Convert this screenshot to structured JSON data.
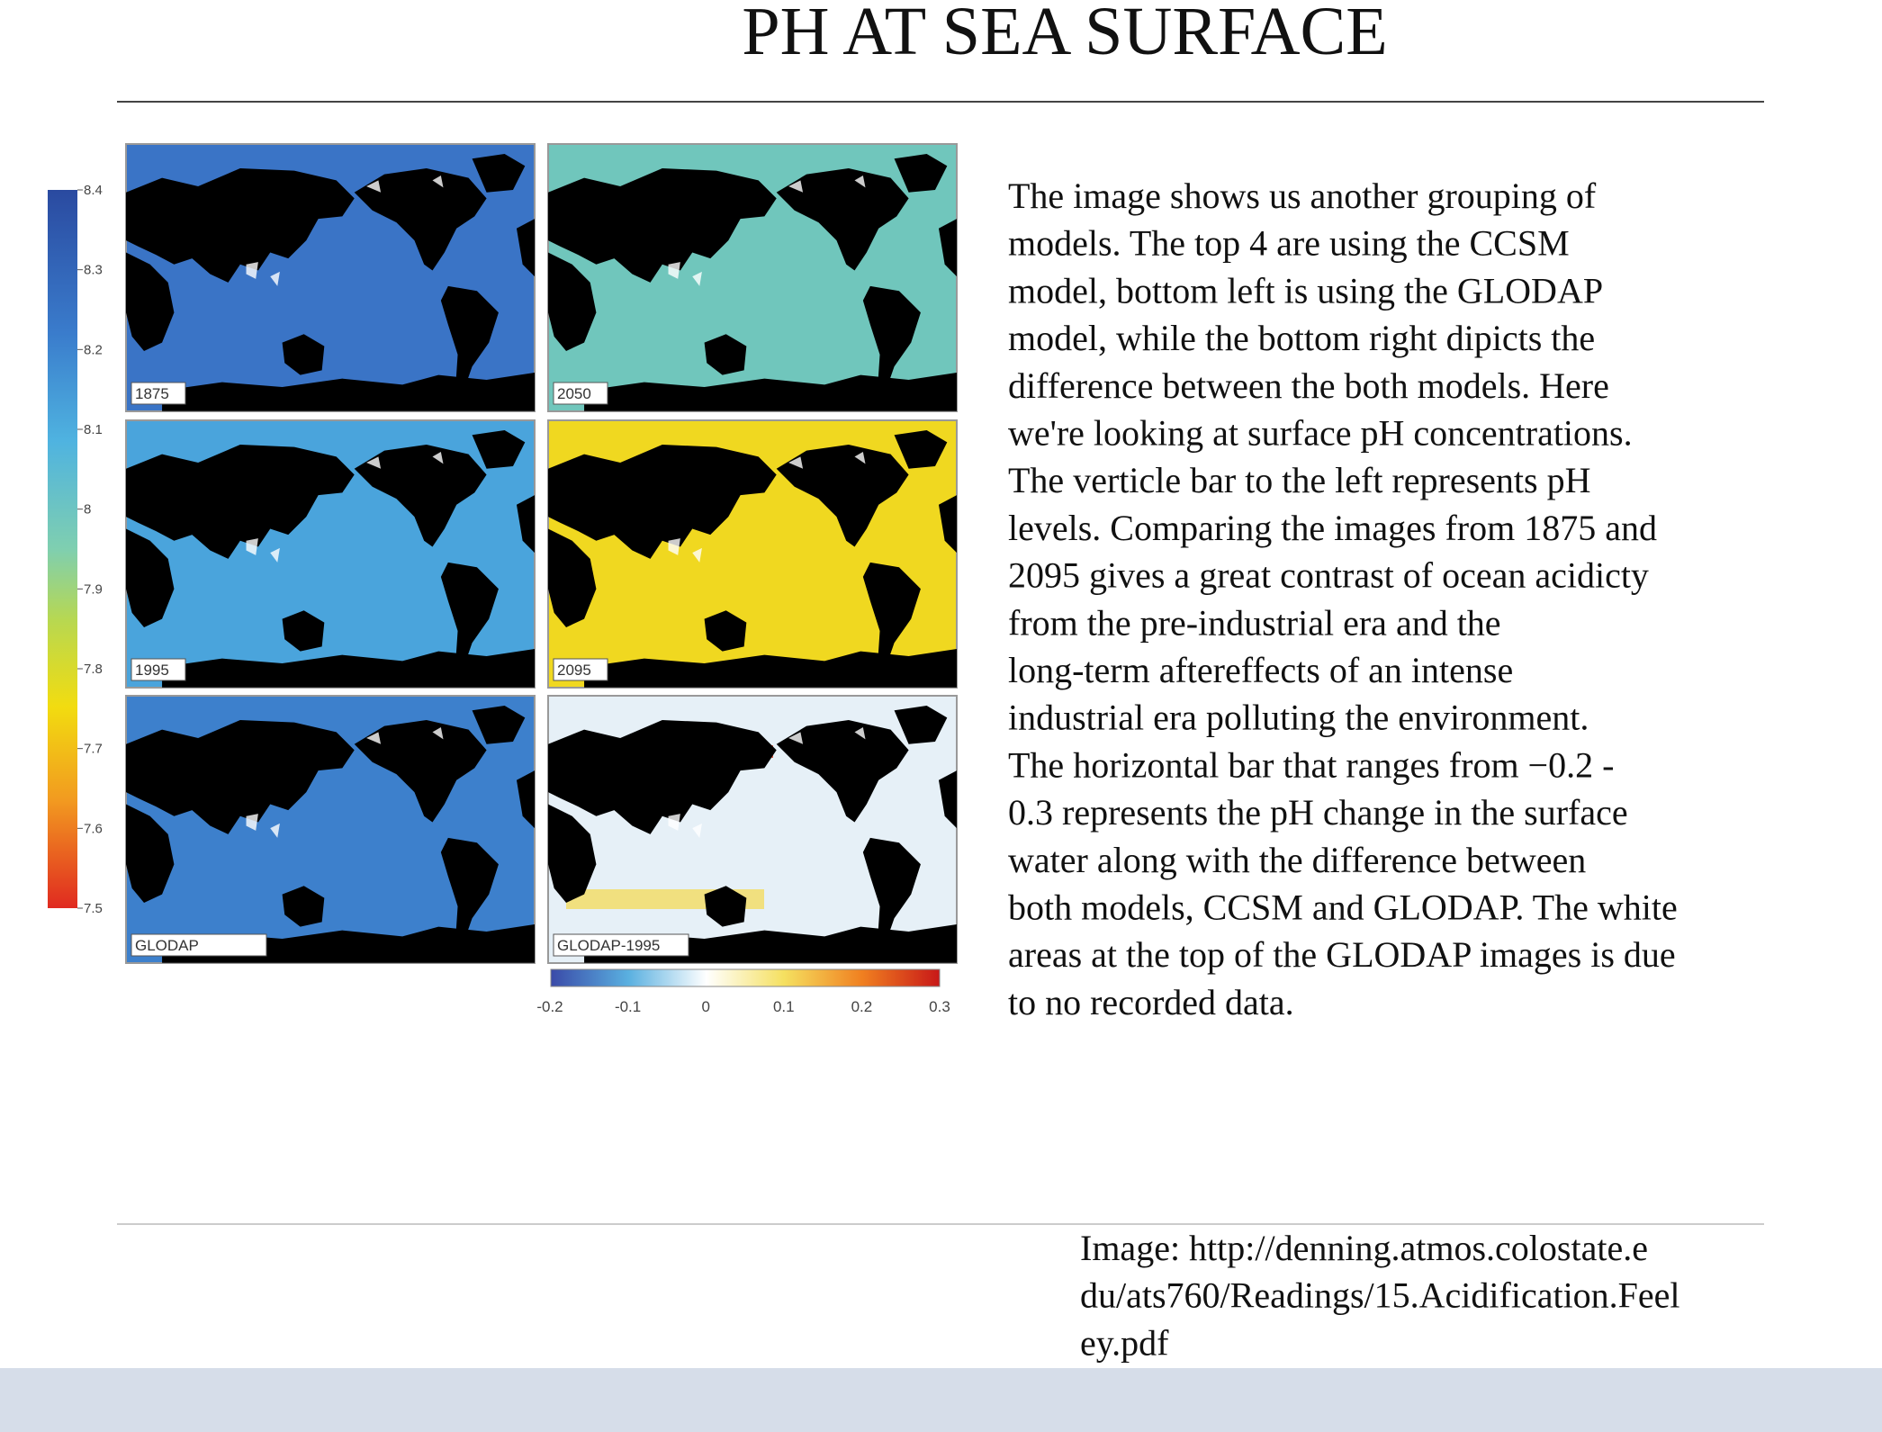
{
  "header": {
    "title": "PH AT SEA SURFACE"
  },
  "figure": {
    "panels": [
      "1875",
      "2050",
      "1995",
      "2095",
      "GLODAP",
      "GLODAP-1995"
    ],
    "ph_scale": [
      "8.4",
      "8.3",
      "8.2",
      "8.1",
      "8",
      "7.9",
      "7.8",
      "7.7",
      "7.6",
      "7.5"
    ],
    "difference_scale": [
      "-0.2",
      "-0.1",
      "0",
      "0.1",
      "0.2",
      "0.3"
    ]
  },
  "body": {
    "lines": [
      "The image shows us another grouping of",
      "models. The top 4 are using the CCSM",
      "model, bottom left is using the GLODAP",
      "model, while the bottom right dipicts the",
      "difference between the both models. Here",
      "we're looking at surface pH concentrations.",
      "The verticle bar to the left represents pH",
      "levels. Comparing the images from 1875 and",
      "2095 gives a great contrast of ocean acidicty",
      "from the pre-industrial era and the",
      "long-term aftereffects of an intense",
      "industrial era polluting the environment.",
      "The horizontal bar that ranges from −0.2 -",
      "0.3  represents the pH change in the surface",
      "water along with the difference between",
      "both models, CCSM and GLODAP. The white",
      "areas at the top of the GLODAP images is due",
      "to no recorded data."
    ]
  },
  "caption": {
    "lines": [
      "Image: http://denning.atmos.colostate.e",
      "du/ats760/Readings/15.Acidification.Feel",
      "ey.pdf"
    ]
  }
}
